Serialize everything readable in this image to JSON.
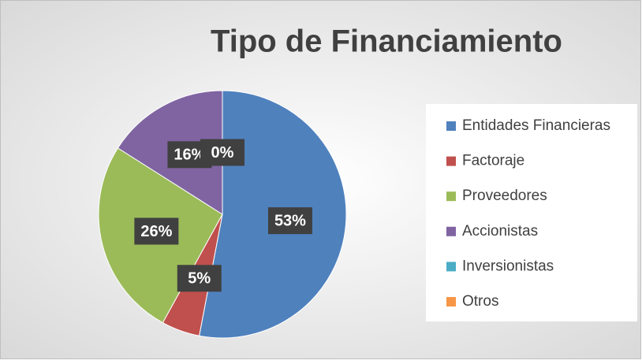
{
  "chart_data": {
    "type": "pie",
    "title": "Tipo de Financiamiento",
    "categories": [
      "Entidades Financieras",
      "Factoraje",
      "Proveedores",
      "Accionistas",
      "Inversionistas",
      "Otros"
    ],
    "values": [
      53,
      5,
      26,
      16,
      0,
      0
    ],
    "value_labels": [
      "53%",
      "5%",
      "26%",
      "16%",
      "0%",
      null
    ],
    "colors": [
      "#4f81bd",
      "#c0504d",
      "#9bbb59",
      "#8064a2",
      "#4bacc6",
      "#f79646"
    ],
    "legend": "right"
  }
}
